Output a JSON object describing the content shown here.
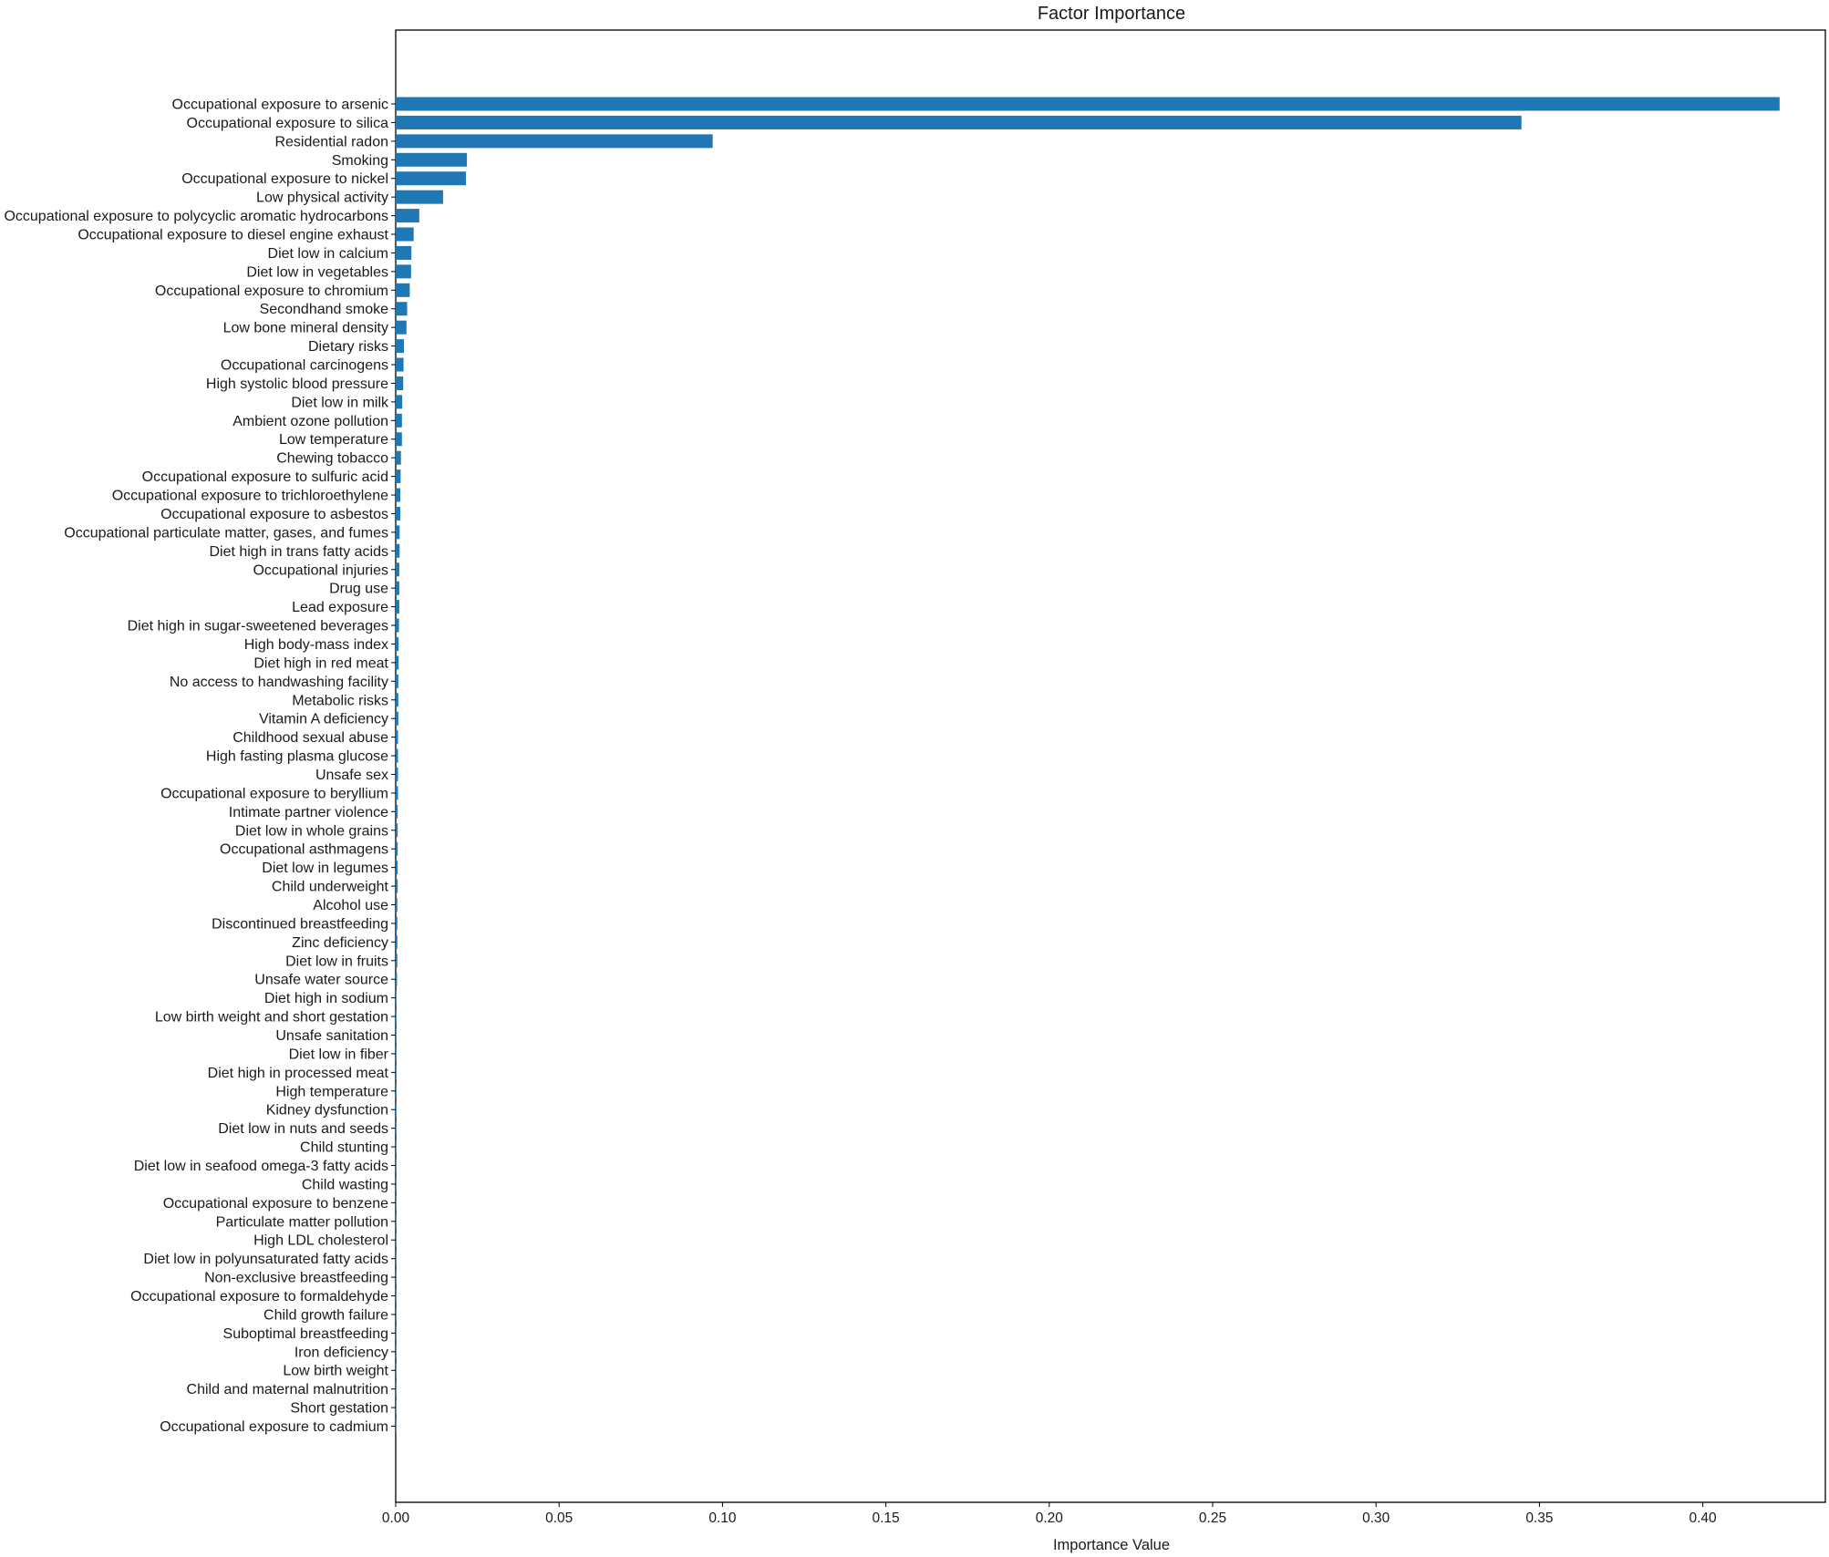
{
  "chart_data": {
    "type": "bar",
    "orientation": "horizontal",
    "title": "Factor Importance",
    "xlabel": "Importance Value",
    "ylabel": "",
    "xlim": [
      0,
      0.4375
    ],
    "xticks": [
      "0.00",
      "0.05",
      "0.10",
      "0.15",
      "0.20",
      "0.25",
      "0.30",
      "0.35",
      "0.40"
    ],
    "grid": false,
    "legend": "none",
    "bar_color": "#1f77b4",
    "categories": [
      "Occupational exposure to arsenic",
      "Occupational exposure to silica",
      "Residential radon",
      "Smoking",
      "Occupational exposure to nickel",
      "Low physical activity",
      "Occupational exposure to polycyclic aromatic hydrocarbons",
      "Occupational exposure to diesel engine exhaust",
      "Diet low in calcium",
      "Diet low in vegetables",
      "Occupational exposure to chromium",
      "Secondhand smoke",
      "Low bone mineral density",
      "Dietary risks",
      "Occupational carcinogens",
      "High systolic blood pressure",
      "Diet low in milk",
      "Ambient ozone pollution",
      "Low temperature",
      "Chewing tobacco",
      "Occupational exposure to sulfuric acid",
      "Occupational exposure to trichloroethylene",
      "Occupational exposure to asbestos",
      "Occupational particulate matter, gases, and fumes",
      "Diet high in trans fatty acids",
      "Occupational injuries",
      "Drug use",
      "Lead exposure",
      "Diet high in sugar-sweetened beverages",
      "High body-mass index",
      "Diet high in red meat",
      "No access to handwashing facility",
      "Metabolic risks",
      "Vitamin A deficiency",
      "Childhood sexual abuse",
      "High fasting plasma glucose",
      "Unsafe sex",
      "Occupational exposure to beryllium",
      "Intimate partner violence",
      "Diet low in whole grains",
      "Occupational asthmagens",
      "Diet low in legumes",
      "Child underweight",
      "Alcohol use",
      "Discontinued breastfeeding",
      "Zinc deficiency",
      "Diet low in fruits",
      "Unsafe water source",
      "Diet high in sodium",
      "Low birth weight and short gestation",
      "Unsafe sanitation",
      "Diet low in fiber",
      "Diet high in processed meat",
      "High temperature",
      "Kidney dysfunction",
      "Diet low in nuts and seeds",
      "Child stunting",
      "Diet low in seafood omega-3 fatty acids",
      "Child wasting",
      "Occupational exposure to benzene",
      "Particulate matter pollution",
      "High LDL cholesterol",
      "Diet low in polyunsaturated fatty acids",
      "Non-exclusive breastfeeding",
      "Occupational exposure to formaldehyde",
      "Child growth failure",
      "Suboptimal breastfeeding",
      "Iron deficiency",
      "Low birth weight",
      "Child and maternal malnutrition",
      "Short gestation",
      "Occupational exposure to cadmium"
    ],
    "values": [
      0.4235,
      0.3445,
      0.097,
      0.0218,
      0.0215,
      0.0145,
      0.0072,
      0.0055,
      0.0048,
      0.0047,
      0.0043,
      0.0035,
      0.0033,
      0.0025,
      0.0024,
      0.0023,
      0.002,
      0.0019,
      0.0019,
      0.0016,
      0.0015,
      0.0014,
      0.0014,
      0.0012,
      0.0012,
      0.0011,
      0.0011,
      0.0011,
      0.001,
      0.0009,
      0.0009,
      0.0008,
      0.0008,
      0.0008,
      0.0007,
      0.0007,
      0.0007,
      0.0007,
      0.0006,
      0.0006,
      0.0006,
      0.0006,
      0.0006,
      0.0005,
      0.0005,
      0.0005,
      0.0005,
      0.0004,
      0.0002,
      0.0002,
      0.0002,
      0.0002,
      0.0002,
      0.0002,
      0.0002,
      0.0002,
      0.0001,
      0.0001,
      0.0001,
      0.0001,
      0.0001,
      0.0001,
      0.0001,
      0.0001,
      0.0001,
      0.0001,
      0.0001,
      0.0001,
      0.0001,
      0.0001,
      0.0001,
      0.0001
    ]
  }
}
